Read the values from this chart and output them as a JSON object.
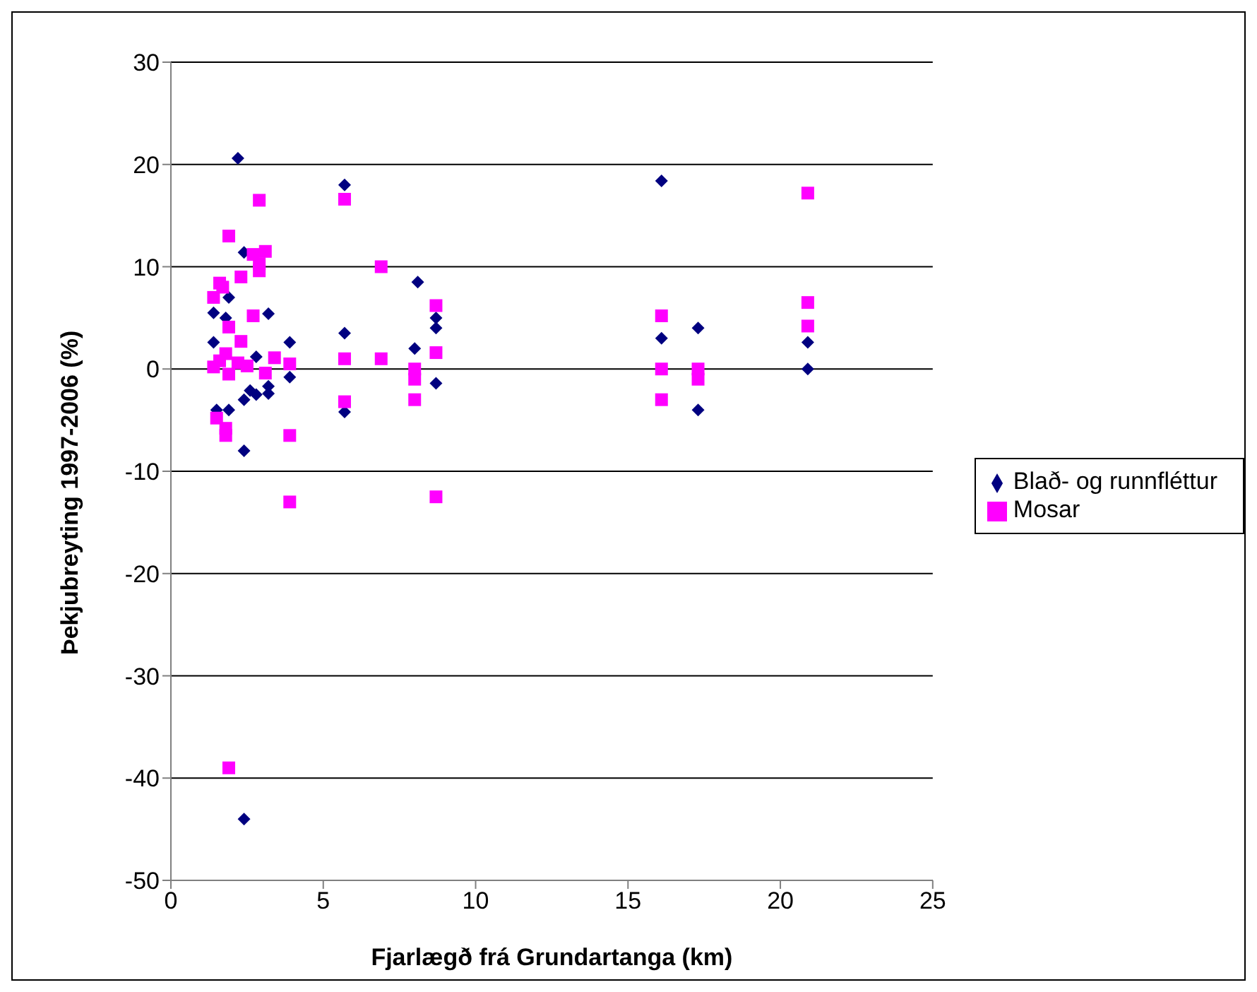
{
  "chart_data": {
    "type": "scatter",
    "xlabel": "Fjarlægð frá Grundartanga (km)",
    "ylabel": "Þekjubreyting 1997-2006 (%)",
    "xlim": [
      0,
      25
    ],
    "xticks": [
      0,
      5,
      10,
      15,
      20,
      25
    ],
    "ylim": [
      -50,
      30
    ],
    "yticks": [
      -50,
      -40,
      -30,
      -20,
      -10,
      0,
      10,
      20,
      30
    ],
    "grid": "y",
    "legend": "right",
    "series": [
      {
        "name": "Blað- og runnfléttur",
        "color": "#000080",
        "marker": "diamond",
        "x": [
          2.2,
          5.7,
          16.1,
          2.4,
          8.1,
          1.9,
          1.4,
          1.8,
          3.2,
          1.4,
          3.9,
          5.7,
          8,
          8.7,
          8.7,
          16.1,
          17.3,
          20.9,
          20.9,
          8.7,
          17.3,
          5.7,
          3.9,
          2.4,
          2.8,
          3.2,
          1.9,
          1.5,
          2.4,
          2.8,
          3.2,
          2.6,
          2.4
        ],
        "values": [
          20.6,
          18,
          18.4,
          11.4,
          8.5,
          7,
          5.5,
          5,
          5.4,
          2.6,
          2.6,
          3.5,
          2,
          5,
          4,
          3,
          4,
          2.6,
          0,
          -1.4,
          -4,
          -4.2,
          -0.8,
          -3,
          -2.5,
          -2.4,
          -4,
          -4,
          -8,
          1.2,
          -1.7,
          -2.1,
          -44
        ]
      },
      {
        "name": "Mosar",
        "color": "#ff00ff",
        "marker": "square",
        "x": [
          2.9,
          1.9,
          5.7,
          20.9,
          6.9,
          2.7,
          3.1,
          2.9,
          2.9,
          2.3,
          1.6,
          1.7,
          1.4,
          2.7,
          1.9,
          2.3,
          3.4,
          3.9,
          3.1,
          1.4,
          1.8,
          2.2,
          1.6,
          1.9,
          2.5,
          1.5,
          1.8,
          1.8,
          3.9,
          3.9,
          1.9,
          8.7,
          8.7,
          8,
          8,
          8,
          8.7,
          5.7,
          6.9,
          5.7,
          16.1,
          16.1,
          16.1,
          17.3,
          17.3,
          20.9,
          20.9
        ],
        "values": [
          16.5,
          13,
          16.6,
          17.2,
          10,
          11.2,
          11.5,
          10.3,
          9.6,
          9,
          8.4,
          8,
          7,
          5.2,
          4.1,
          2.7,
          1.1,
          0.5,
          -0.4,
          0.2,
          1.5,
          0.6,
          0.8,
          -0.5,
          0.3,
          -4.8,
          -5.8,
          -6.5,
          -6.5,
          -13,
          -39,
          6.2,
          1.6,
          0,
          -1,
          -3,
          -12.5,
          1,
          1,
          -3.2,
          5.2,
          0,
          -3,
          0,
          -1,
          6.5,
          4.2
        ]
      }
    ]
  }
}
